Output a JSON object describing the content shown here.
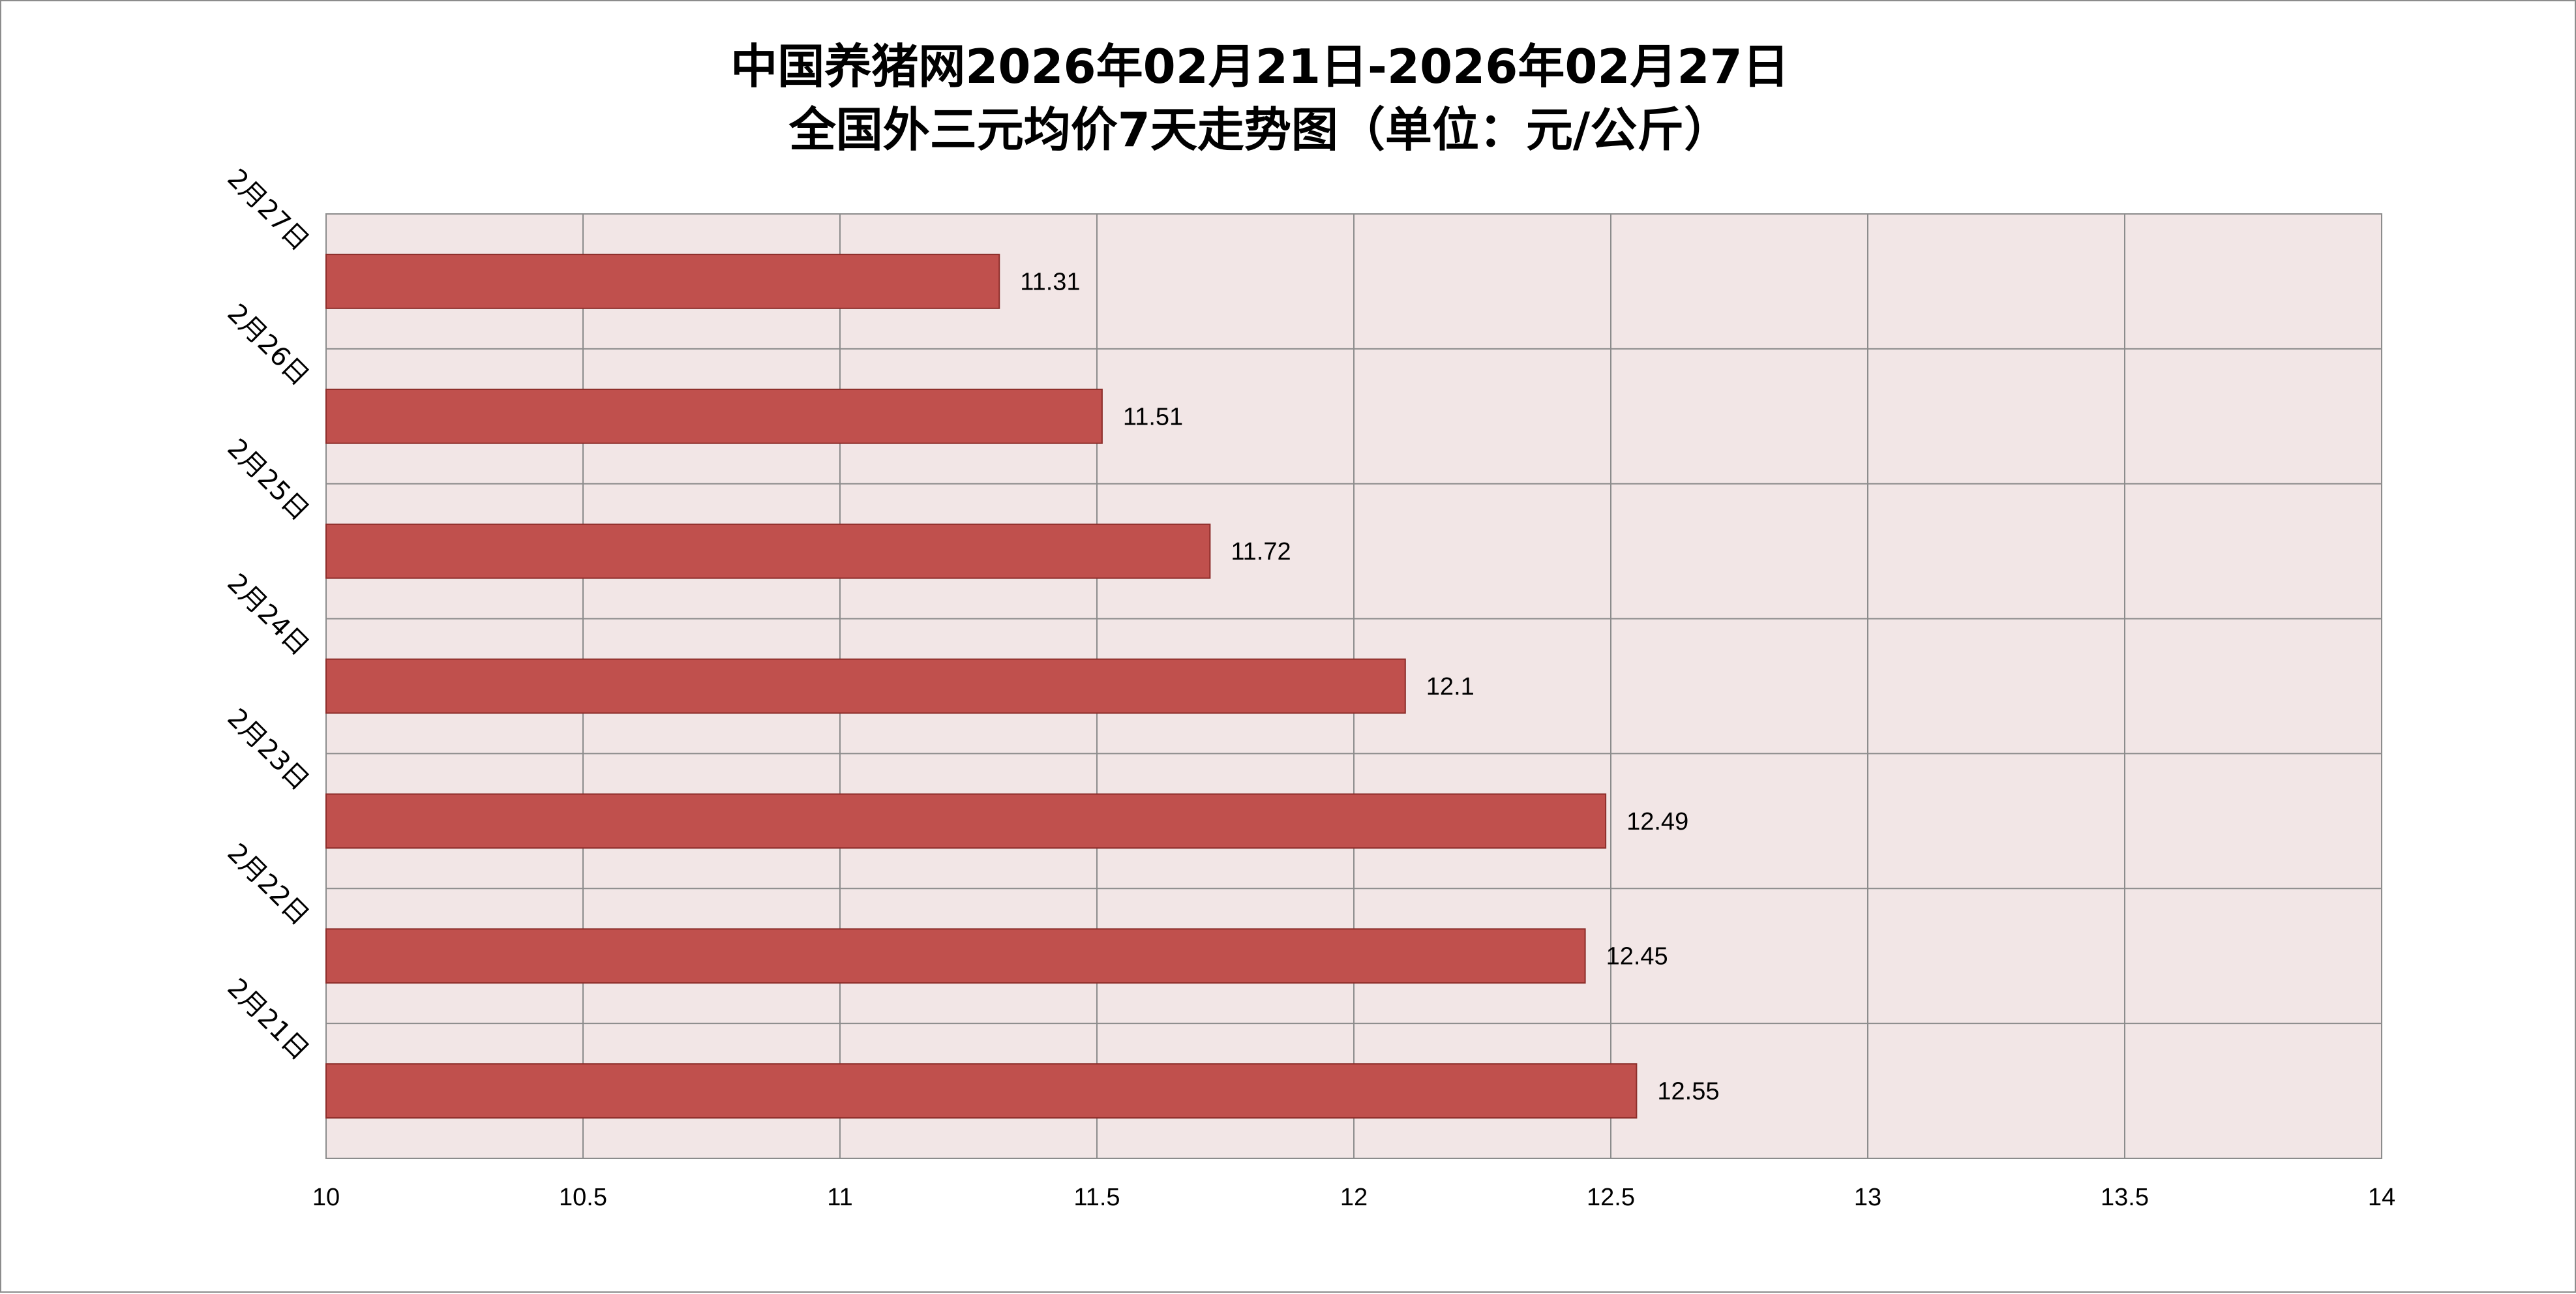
{
  "chart_data": {
    "type": "bar",
    "orientation": "horizontal",
    "title_lines": [
      "中国养猪网2026年02月21日-2026年02月27日",
      "全国外三元均价7天走势图（单位：元/公斤）"
    ],
    "categories": [
      "2月27日",
      "2月26日",
      "2月25日",
      "2月24日",
      "2月23日",
      "2月22日",
      "2月21日"
    ],
    "values": [
      11.31,
      11.51,
      11.72,
      12.1,
      12.49,
      12.45,
      12.55
    ],
    "data_labels": [
      "11.31",
      "11.51",
      "11.72",
      "12.1",
      "12.49",
      "12.45",
      "12.55"
    ],
    "xlim": [
      10,
      14
    ],
    "x_ticks": [
      10,
      10.5,
      11,
      11.5,
      12,
      12.5,
      13,
      13.5,
      14
    ],
    "x_tick_labels": [
      "10",
      "10.5",
      "11",
      "11.5",
      "12",
      "12.5",
      "13",
      "13.5",
      "14"
    ],
    "grid": true,
    "legend": "none",
    "colors": {
      "bar_fill": "#c0504d",
      "bar_stroke": "#8c2d2a",
      "plot_background": "#f2e6e6",
      "grid": "#8c8c8c"
    }
  }
}
